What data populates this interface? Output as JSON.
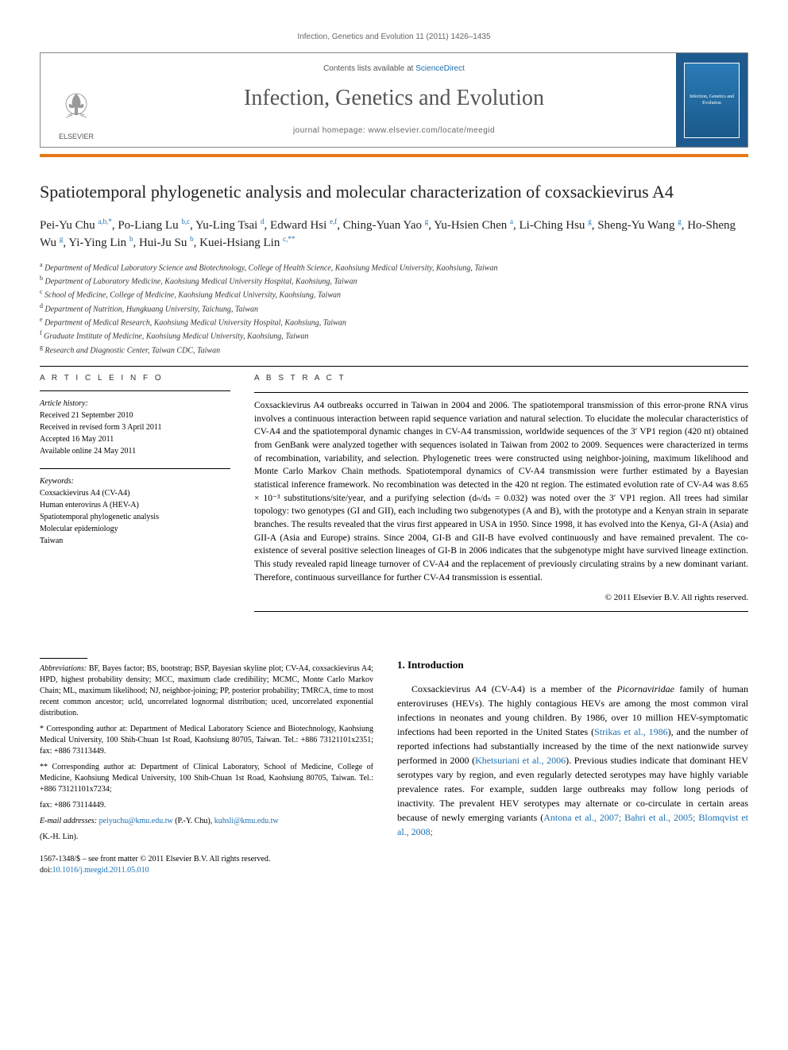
{
  "header": {
    "citation_line": "Infection, Genetics and Evolution 11 (2011) 1426–1435",
    "contents_avail_prefix": "Contents lists available at ",
    "contents_avail_link": "ScienceDirect",
    "journal_title": "Infection, Genetics and Evolution",
    "homepage_label": "journal homepage: www.elsevier.com/locate/meegid",
    "publisher_name": "ELSEVIER",
    "cover_text": "Infection, Genetics and Evolution"
  },
  "article": {
    "title": "Spatiotemporal phylogenetic analysis and molecular characterization of coxsackievirus A4",
    "authors_html": "Pei-Yu Chu <sup>a,b,*</sup>, Po-Liang Lu <sup>b,c</sup>, Yu-Ling Tsai <sup>d</sup>, Edward Hsi <sup>e,f</sup>, Ching-Yuan Yao <sup>g</sup>, Yu-Hsien Chen <sup>a</sup>, Li-Ching Hsu <sup>g</sup>, Sheng-Yu Wang <sup>g</sup>, Ho-Sheng Wu <sup>g</sup>, Yi-Ying Lin <sup>b</sup>, Hui-Ju Su <sup>b</sup>, Kuei-Hsiang Lin <sup>c,**</sup>",
    "affiliations": [
      {
        "sup": "a",
        "text": "Department of Medical Laboratory Science and Biotechnology, College of Health Science, Kaohsiung Medical University, Kaohsiung, Taiwan"
      },
      {
        "sup": "b",
        "text": "Department of Laboratory Medicine, Kaohsiung Medical University Hospital, Kaohsiung, Taiwan"
      },
      {
        "sup": "c",
        "text": "School of Medicine, College of Medicine, Kaohsiung Medical University, Kaohsiung, Taiwan"
      },
      {
        "sup": "d",
        "text": "Department of Nutrition, Hungkuang University, Taichung, Taiwan"
      },
      {
        "sup": "e",
        "text": "Department of Medical Research, Kaohsiung Medical University Hospital, Kaohsiung, Taiwan"
      },
      {
        "sup": "f",
        "text": "Graduate Institute of Medicine, Kaohsiung Medical University, Kaohsiung, Taiwan"
      },
      {
        "sup": "g",
        "text": "Research and Diagnostic Center, Taiwan CDC, Taiwan"
      }
    ]
  },
  "info": {
    "heading": "A R T I C L E   I N F O",
    "history_label": "Article history:",
    "history_lines": [
      "Received 21 September 2010",
      "Received in revised form 3 April 2011",
      "Accepted 16 May 2011",
      "Available online 24 May 2011"
    ],
    "keywords_label": "Keywords:",
    "keywords": [
      "Coxsackievirus A4 (CV-A4)",
      "Human enterovirus A (HEV-A)",
      "Spatiotemporal phylogenetic analysis",
      "Molecular epidemiology",
      "Taiwan"
    ]
  },
  "abstract": {
    "heading": "A B S T R A C T",
    "text": "Coxsackievirus A4 outbreaks occurred in Taiwan in 2004 and 2006. The spatiotemporal transmission of this error-prone RNA virus involves a continuous interaction between rapid sequence variation and natural selection. To elucidate the molecular characteristics of CV-A4 and the spatiotemporal dynamic changes in CV-A4 transmission, worldwide sequences of the 3′ VP1 region (420 nt) obtained from GenBank were analyzed together with sequences isolated in Taiwan from 2002 to 2009. Sequences were characterized in terms of recombination, variability, and selection. Phylogenetic trees were constructed using neighbor-joining, maximum likelihood and Monte Carlo Markov Chain methods. Spatiotemporal dynamics of CV-A4 transmission were further estimated by a Bayesian statistical inference framework. No recombination was detected in the 420 nt region. The estimated evolution rate of CV-A4 was 8.65 × 10⁻³ substitutions/site/year, and a purifying selection (dₙ/dₛ = 0.032) was noted over the 3′ VP1 region. All trees had similar topology: two genotypes (GI and GII), each including two subgenotypes (A and B), with the prototype and a Kenyan strain in separate branches. The results revealed that the virus first appeared in USA in 1950. Since 1998, it has evolved into the Kenya, GI-A (Asia) and GII-A (Asia and Europe) strains. Since 2004, GI-B and GII-B have evolved continuously and have remained prevalent. The co-existence of several positive selection lineages of GI-B in 2006 indicates that the subgenotype might have survived lineage extinction. This study revealed rapid lineage turnover of CV-A4 and the replacement of previously circulating strains by a new dominant variant. Therefore, continuous surveillance for further CV-A4 transmission is essential.",
    "copyright": "© 2011 Elsevier B.V. All rights reserved."
  },
  "footnotes": {
    "abbrev_label": "Abbreviations:",
    "abbrev_text": " BF, Bayes factor; BS, bootstrap; BSP, Bayesian skyline plot; CV-A4, coxsackievirus A4; HPD, highest probability density; MCC, maximum clade credibility; MCMC, Monte Carlo Markov Chain; ML, maximum likelihood; NJ, neighbor-joining; PP, posterior probability; TMRCA, time to most recent common ancestor; ucld, uncorrelated lognormal distribution; uced, uncorrelated exponential distribution.",
    "corr1": "* Corresponding author at: Department of Medical Laboratory Science and Biotechnology, Kaohsiung Medical University, 100 Shih-Chuan 1st Road, Kaohsiung 80705, Taiwan. Tel.: +886 73121101x2351; fax: +886 73113449.",
    "corr2": "** Corresponding author at: Department of Clinical Laboratory, School of Medicine, College of Medicine, Kaohsiung Medical University, 100 Shih-Chuan 1st Road, Kaohsiung 80705, Taiwan. Tel.: +886 73121101x7234;",
    "corr2_fax": "fax: +886 73114449.",
    "email_label": "E-mail addresses:",
    "email1": "peiyuchu@kmu.edu.tw",
    "email1_who": " (P.-Y. Chu), ",
    "email2": "kuhsli@kmu.edu.tw",
    "email2_who": "(K.-H. Lin).",
    "issn_line": "1567-1348/$ – see front matter © 2011 Elsevier B.V. All rights reserved.",
    "doi_prefix": "doi:",
    "doi_link": "10.1016/j.meegid.2011.05.010"
  },
  "intro": {
    "heading": "1. Introduction",
    "text_pre": "Coxsackievirus A4 (CV-A4) is a member of the ",
    "text_em": "Picornaviridae",
    "text_post1": " family of human enteroviruses (HEVs). The highly contagious HEVs are among the most common viral infections in neonates and young children. By 1986, over 10 million HEV-symptomatic infections had been reported in the United States (",
    "ref1": "Strikas et al., 1986",
    "text_post2": "), and the number of reported infections had substantially increased by the time of the next nationwide survey performed in 2000 (",
    "ref2": "Khetsuriani et al., 2006",
    "text_post3": "). Previous studies indicate that dominant HEV serotypes vary by region, and even regularly detected serotypes may have highly variable prevalence rates. For example, sudden large outbreaks may follow long periods of inactivity. The prevalent HEV serotypes may alternate or co-circulate in certain areas because of newly emerging variants (",
    "ref3": "Antona et al., 2007; Bahri et al., 2005; Blomqvist et al., 2008;"
  },
  "colors": {
    "link": "#1a6fb0",
    "orange_bar": "#e67817",
    "cover_bg": "#1e5a8e",
    "text": "#000000",
    "muted": "#666666"
  }
}
